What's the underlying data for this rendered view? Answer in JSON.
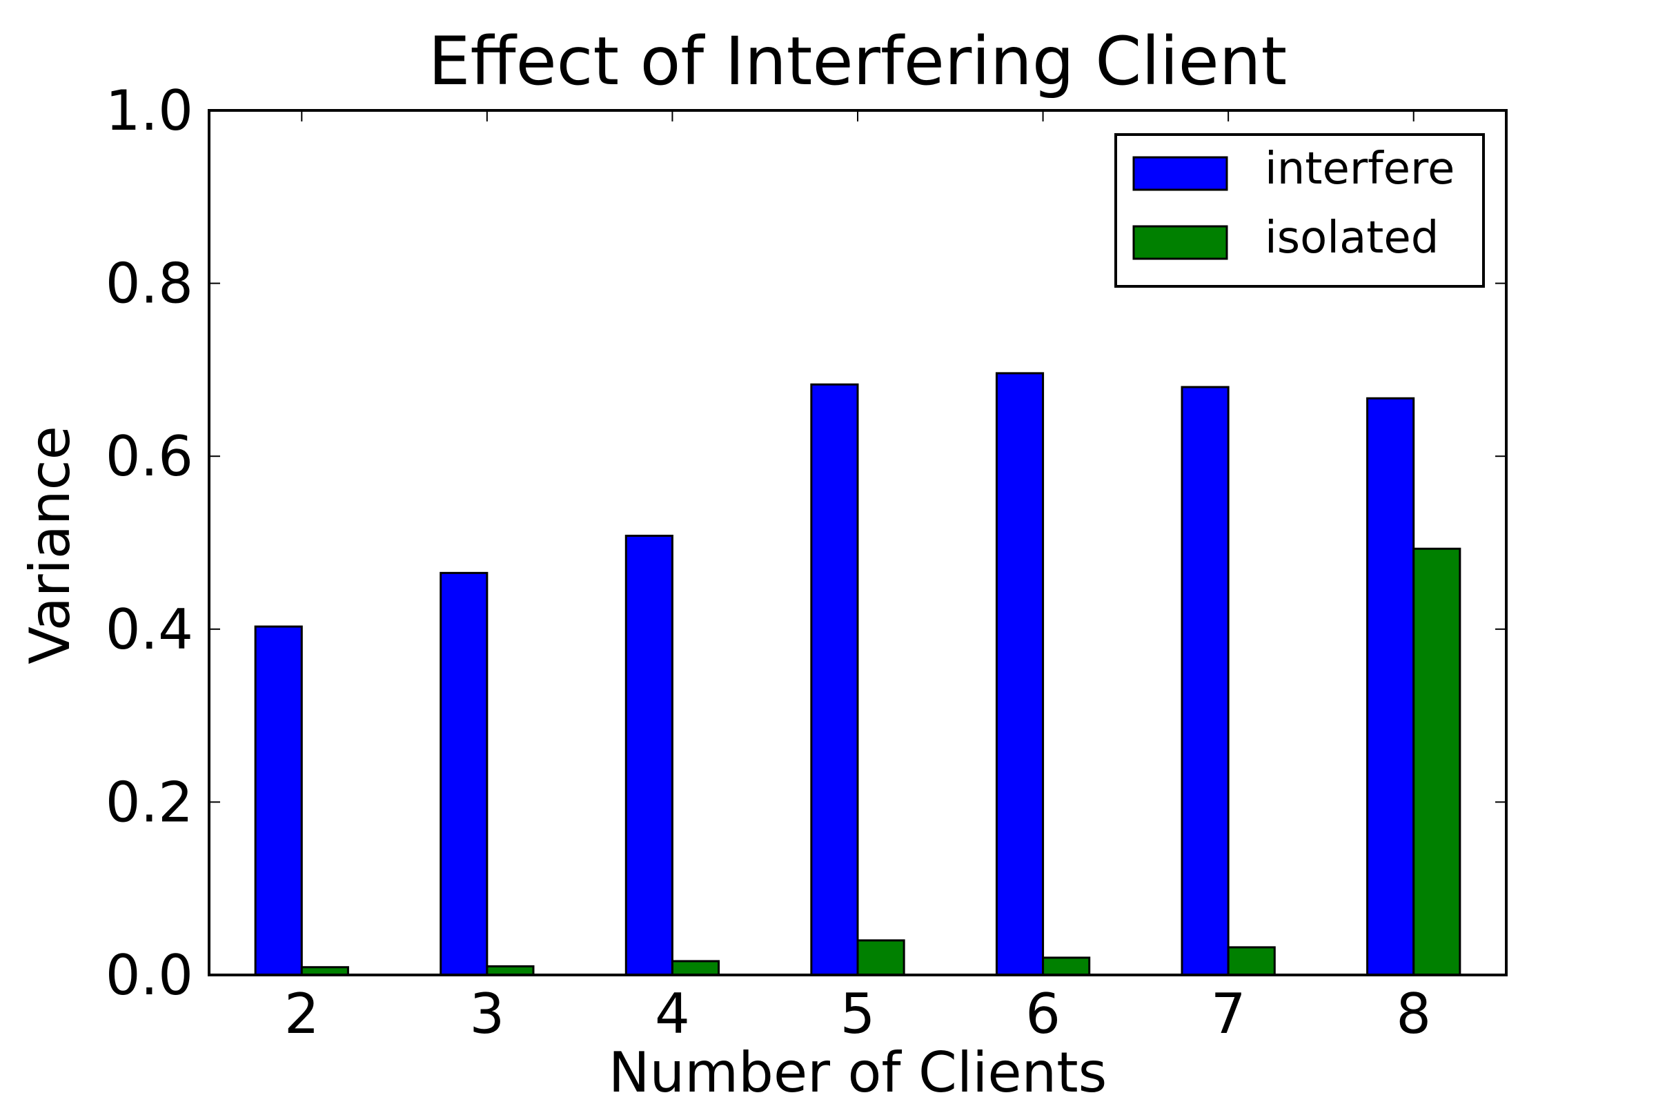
{
  "chart_data": {
    "type": "bar",
    "title": "Effect of Interfering Client",
    "xlabel": "Number of Clients",
    "ylabel": "Variance",
    "categories": [
      "2",
      "3",
      "4",
      "5",
      "6",
      "7",
      "8"
    ],
    "series": [
      {
        "name": "interfere",
        "color": "#0000ff",
        "values": [
          0.403,
          0.465,
          0.508,
          0.683,
          0.696,
          0.68,
          0.667
        ]
      },
      {
        "name": "isolated",
        "color": "#008000",
        "values": [
          0.009,
          0.01,
          0.016,
          0.04,
          0.02,
          0.032,
          0.493
        ]
      }
    ],
    "ylim": [
      0,
      1.0
    ],
    "yticks": [
      "0.0",
      "0.2",
      "0.4",
      "0.6",
      "0.8",
      "1.0"
    ],
    "grid": false,
    "legend_position": "top-right"
  }
}
